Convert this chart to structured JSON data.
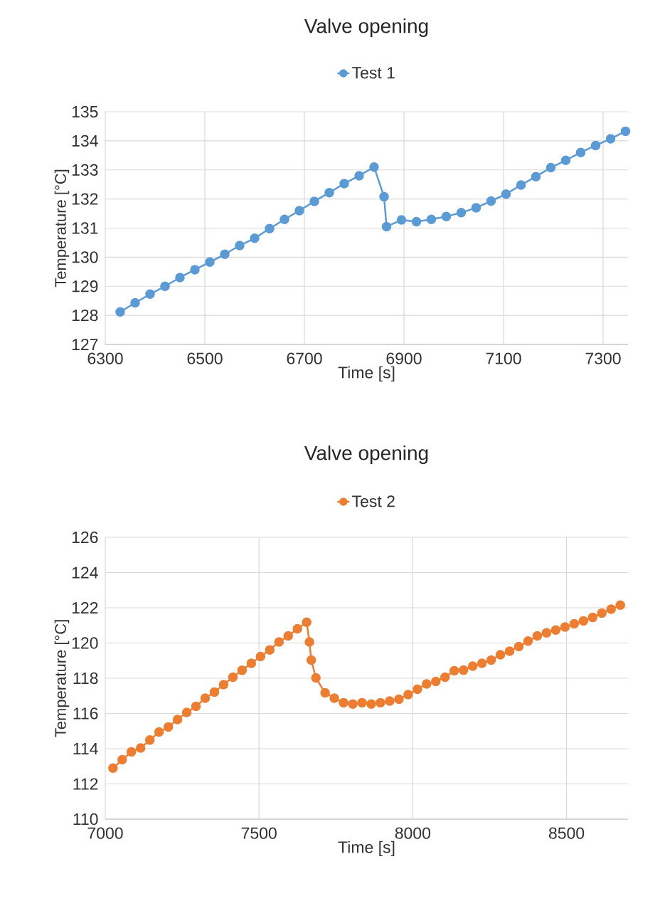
{
  "chart_data": [
    {
      "type": "line",
      "title": "Valve opening",
      "xlabel": "Time [s]",
      "ylabel": "Temperature [°C]",
      "legend": "top",
      "grid": true,
      "marker": "circle",
      "line_style": "solid",
      "xlim": [
        6300,
        7350
      ],
      "xticks": [
        6300,
        6500,
        6700,
        6900,
        7100,
        7300
      ],
      "ylim": [
        127,
        135
      ],
      "yticks": [
        127,
        128,
        129,
        130,
        131,
        132,
        133,
        134,
        135
      ],
      "series": [
        {
          "name": "Test 1",
          "color": "#5b9bd5",
          "x": [
            6330,
            6360,
            6390,
            6420,
            6450,
            6480,
            6510,
            6540,
            6570,
            6600,
            6630,
            6660,
            6690,
            6720,
            6750,
            6780,
            6810,
            6840,
            6860,
            6865,
            6895,
            6925,
            6955,
            6985,
            7015,
            7045,
            7075,
            7105,
            7135,
            7165,
            7195,
            7225,
            7255,
            7285,
            7315,
            7345
          ],
          "values": [
            128.12,
            128.43,
            128.73,
            129.0,
            129.3,
            129.57,
            129.83,
            130.1,
            130.4,
            130.65,
            130.98,
            131.3,
            131.6,
            131.92,
            132.22,
            132.53,
            132.8,
            133.1,
            132.08,
            131.05,
            131.28,
            131.22,
            131.3,
            131.4,
            131.53,
            131.7,
            131.93,
            132.17,
            132.48,
            132.77,
            133.08,
            133.33,
            133.6,
            133.84,
            134.07,
            134.33
          ]
        }
      ]
    },
    {
      "type": "line",
      "title": "Valve opening",
      "xlabel": "Time [s]",
      "ylabel": "Temperature [°C]",
      "legend": "top",
      "grid": true,
      "marker": "circle",
      "line_style": "solid",
      "xlim": [
        7000,
        8700
      ],
      "xticks": [
        7000,
        7500,
        8000,
        8500
      ],
      "ylim": [
        110,
        126
      ],
      "yticks": [
        110,
        112,
        114,
        116,
        118,
        120,
        122,
        124,
        126
      ],
      "series": [
        {
          "name": "Test 2",
          "color": "#ed7d31",
          "x": [
            7025,
            7055,
            7085,
            7115,
            7145,
            7175,
            7205,
            7235,
            7265,
            7295,
            7325,
            7355,
            7385,
            7415,
            7445,
            7475,
            7505,
            7535,
            7565,
            7595,
            7625,
            7655,
            7664,
            7670,
            7685,
            7715,
            7745,
            7775,
            7805,
            7835,
            7865,
            7895,
            7925,
            7955,
            7985,
            8015,
            8045,
            8075,
            8105,
            8135,
            8165,
            8195,
            8225,
            8255,
            8285,
            8315,
            8345,
            8375,
            8405,
            8435,
            8465,
            8495,
            8525,
            8555,
            8585,
            8615,
            8645,
            8675
          ],
          "values": [
            112.9,
            113.37,
            113.82,
            114.04,
            114.49,
            114.95,
            115.23,
            115.66,
            116.06,
            116.4,
            116.87,
            117.21,
            117.64,
            118.06,
            118.45,
            118.85,
            119.23,
            119.61,
            120.06,
            120.4,
            120.81,
            121.18,
            120.06,
            119.03,
            118.02,
            117.17,
            116.87,
            116.61,
            116.54,
            116.61,
            116.54,
            116.61,
            116.71,
            116.81,
            117.07,
            117.37,
            117.68,
            117.82,
            118.06,
            118.42,
            118.46,
            118.69,
            118.85,
            119.03,
            119.33,
            119.54,
            119.8,
            120.11,
            120.4,
            120.58,
            120.74,
            120.91,
            121.09,
            121.25,
            121.45,
            121.7,
            121.92,
            122.15
          ]
        }
      ]
    }
  ]
}
